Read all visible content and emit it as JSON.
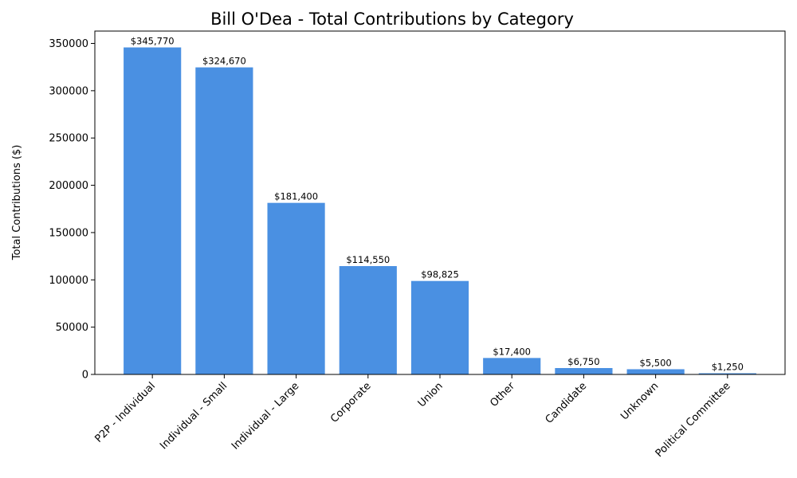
{
  "chart_data": {
    "type": "bar",
    "title": "Bill O'Dea - Total Contributions by Category",
    "xlabel": "",
    "ylabel": "Total Contributions ($)",
    "categories": [
      "P2P - Individual",
      "Individual - Small",
      "Individual - Large",
      "Corporate",
      "Union",
      "Other",
      "Candidate",
      "Unknown",
      "Political Committee"
    ],
    "values": [
      345770,
      324670,
      181400,
      114550,
      98825,
      17400,
      6750,
      5500,
      1250
    ],
    "value_labels": [
      "$345,770",
      "$324,670",
      "$181,400",
      "$114,550",
      "$98,825",
      "$17,400",
      "$6,750",
      "$5,500",
      "$1,250"
    ],
    "ylim": [
      0,
      363058
    ],
    "yticks": [
      0,
      50000,
      100000,
      150000,
      200000,
      250000,
      300000,
      350000
    ],
    "ytick_labels": [
      "0",
      "50000",
      "100000",
      "150000",
      "200000",
      "250000",
      "300000",
      "350000"
    ],
    "bar_color": "#4a90e2",
    "grid": false,
    "legend": "none"
  }
}
